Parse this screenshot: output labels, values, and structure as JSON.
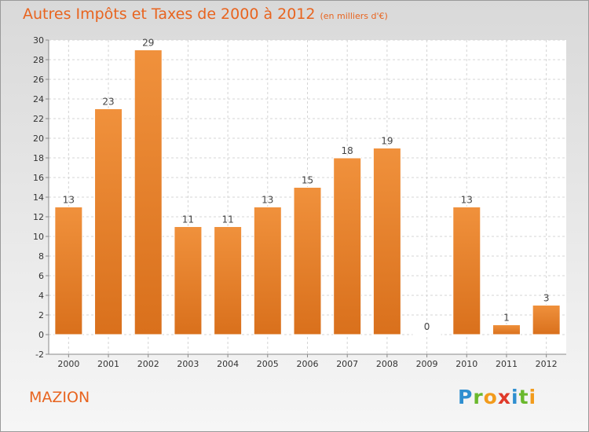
{
  "chart_data": {
    "type": "bar",
    "title": "Autres Impôts et Taxes de 2000 à 2012",
    "subtitle": "(en milliers d'€)",
    "categories": [
      "2000",
      "2001",
      "2002",
      "2003",
      "2004",
      "2005",
      "2006",
      "2007",
      "2008",
      "2009",
      "2010",
      "2011",
      "2012"
    ],
    "values": [
      13,
      23,
      29,
      11,
      11,
      13,
      15,
      18,
      19,
      0,
      13,
      1,
      3
    ],
    "data_labels": [
      "13",
      "23",
      "29",
      "11",
      "11",
      "13",
      "15",
      "18",
      "19",
      "0",
      "13",
      "1",
      "3"
    ],
    "ylim": [
      -2,
      30
    ],
    "yticks": [
      "-2",
      "0",
      "2",
      "4",
      "6",
      "8",
      "10",
      "12",
      "14",
      "16",
      "18",
      "20",
      "22",
      "24",
      "26",
      "28",
      "30"
    ],
    "grid": true,
    "bar_color": "#f0913c",
    "bar_color_dark": "#d9701c"
  },
  "footer": {
    "place": "MAZION",
    "logo_letters": [
      "P",
      "r",
      "o",
      "x",
      "i",
      "t",
      "i"
    ],
    "logo_colors": [
      "#2f8fd0",
      "#6ab82d",
      "#f29b1c",
      "#e03a2a",
      "#2f8fd0",
      "#6ab82d",
      "#f29b1c"
    ]
  }
}
